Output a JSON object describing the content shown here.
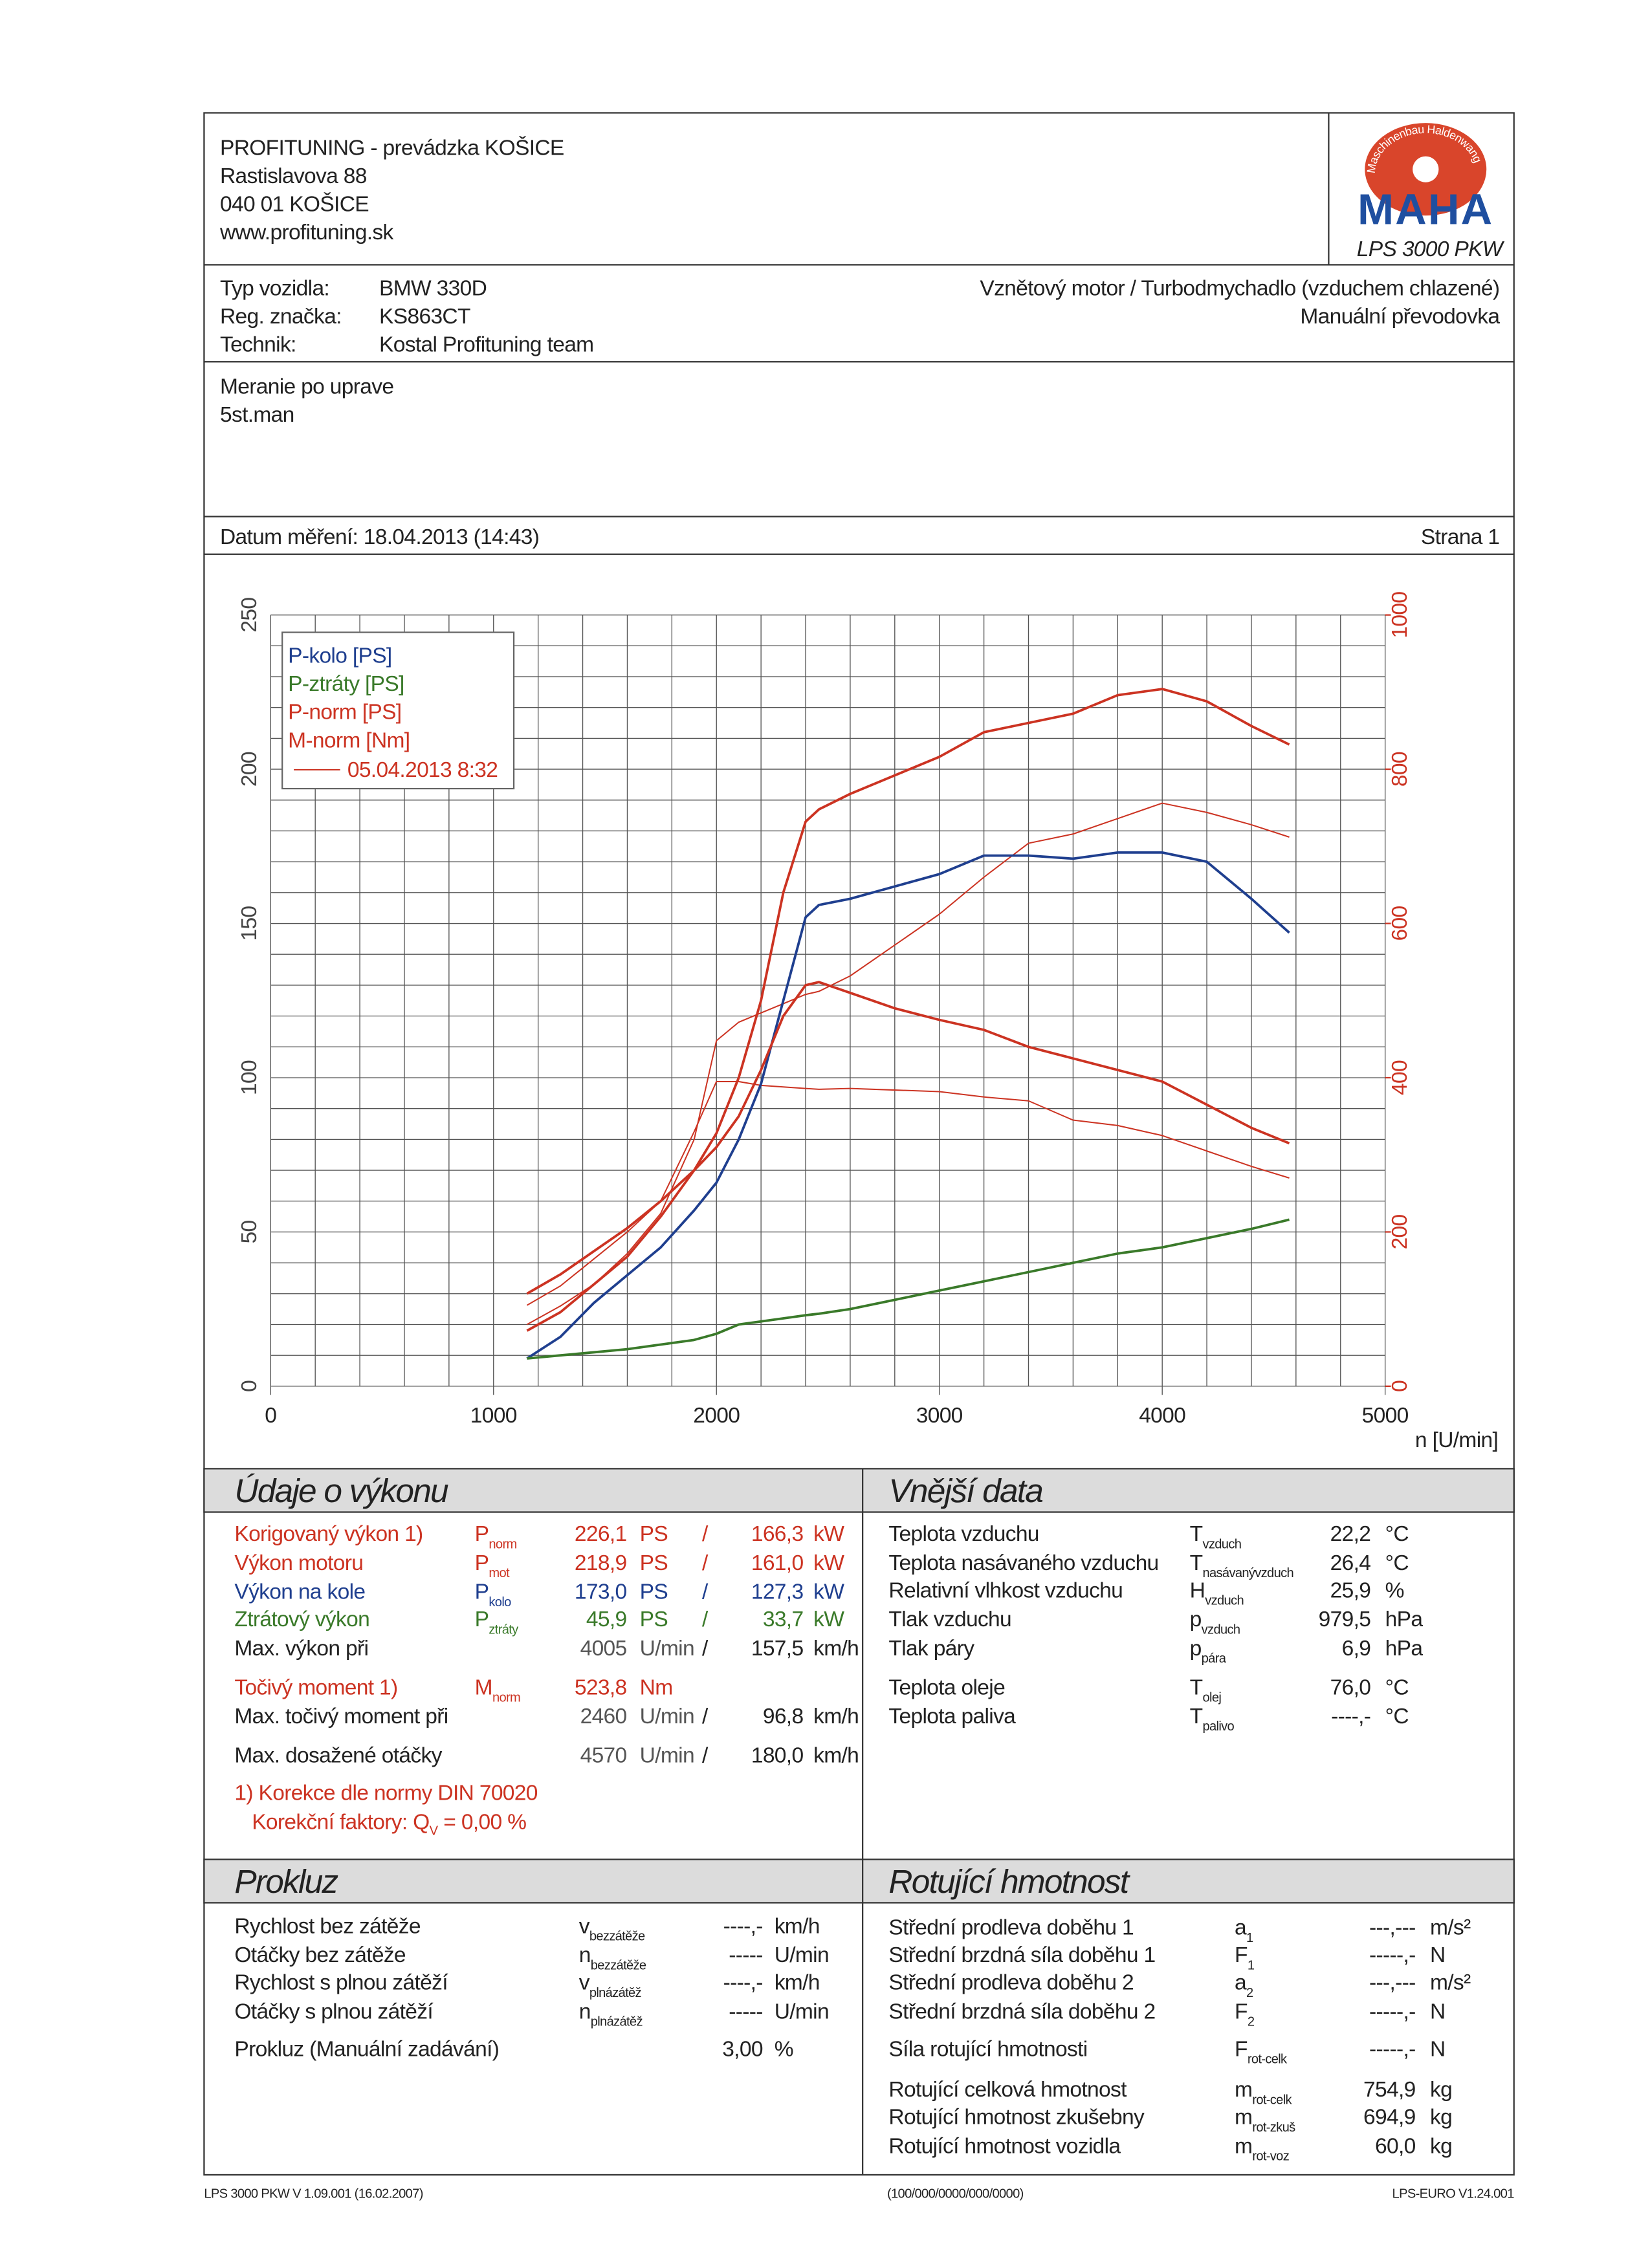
{
  "header": {
    "company_lines": [
      "PROFITUNING - prevádzka KOŠICE",
      "Rastislavova 88",
      "040 01 KOŠICE",
      "www.profituning.sk"
    ],
    "logo_text": "MAHA",
    "logo_ring_text": "Maschinenbau Haldenwang",
    "model": "LPS 3000 PKW"
  },
  "vehicle": {
    "rows": [
      [
        "Typ vozidla:",
        "BMW 330D"
      ],
      [
        "Reg. značka:",
        "KS863CT"
      ],
      [
        "Technik:",
        "Kostal Profituning team"
      ]
    ],
    "right_lines": [
      "Vznětový motor / Turbodmychadlo (vzduchem chlazené)",
      "Manuální převodovka"
    ]
  },
  "notes": [
    "Meranie po uprave",
    "5st.man"
  ],
  "date_row": {
    "date": "Datum měření: 18.04.2013 (14:43)",
    "page": "Strana 1"
  },
  "chart_data": {
    "type": "line",
    "x_label": "n [U/min]",
    "x": [
      1150,
      1300,
      1450,
      1600,
      1750,
      1900,
      2000,
      2100,
      2200,
      2300,
      2400,
      2460,
      2600,
      2800,
      3000,
      3200,
      3400,
      3600,
      3800,
      4000,
      4200,
      4400,
      4570
    ],
    "series": [
      {
        "name": "P-kolo [PS]",
        "color": "#1f3f8f",
        "axis": "y",
        "values": [
          9,
          16,
          27,
          36,
          45,
          57,
          66,
          80,
          98,
          125,
          152,
          156,
          158,
          162,
          166,
          172,
          172,
          171,
          173,
          173,
          170,
          158,
          147
        ]
      },
      {
        "name": "P-ztráty [PS]",
        "color": "#3a7a2a",
        "axis": "y",
        "values": [
          9,
          10,
          11,
          12,
          13.5,
          15,
          17,
          20,
          21,
          22,
          23,
          23.5,
          25,
          28,
          31,
          34,
          37,
          40,
          43,
          45,
          48,
          51,
          54
        ]
      },
      {
        "name": "P-norm [PS]",
        "color": "#cc3322",
        "axis": "y",
        "values": [
          18,
          24,
          33,
          42,
          55,
          70,
          82,
          100,
          125,
          160,
          183,
          187,
          192,
          198,
          204,
          212,
          215,
          218,
          224,
          226,
          222,
          214,
          208
        ]
      },
      {
        "name": "M-norm [Nm]",
        "color": "#cc3322",
        "axis": "y2",
        "values": [
          120,
          145,
          175,
          205,
          240,
          280,
          310,
          350,
          410,
          480,
          520,
          524,
          510,
          490,
          475,
          462,
          440,
          425,
          410,
          395,
          365,
          335,
          315
        ]
      }
    ],
    "comparison": {
      "label": "05.04.2013 8:32",
      "color": "#cc3322",
      "series": [
        {
          "axis": "y",
          "values": [
            20,
            26,
            33,
            43,
            56,
            80,
            112,
            118,
            121,
            124,
            127,
            128,
            133,
            143,
            153,
            165,
            176,
            179,
            184,
            189,
            186,
            182,
            178
          ]
        },
        {
          "axis": "y2",
          "values": [
            105,
            130,
            165,
            200,
            240,
            330,
            395,
            395,
            390,
            388,
            386,
            385,
            386,
            384,
            382,
            375,
            370,
            345,
            338,
            325,
            305,
            285,
            270
          ]
        }
      ]
    },
    "xlim": [
      0,
      5000
    ],
    "xticks": [
      0,
      1000,
      2000,
      3000,
      4000,
      5000
    ],
    "ylim": [
      0,
      250
    ],
    "yticks": [
      0,
      50,
      100,
      150,
      200,
      250
    ],
    "y2lim": [
      0,
      1000
    ],
    "y2ticks": [
      0,
      200,
      400,
      600,
      800,
      1000
    ],
    "y2color": "#cc3322",
    "grid": {
      "x_step": 200,
      "y_step": 10
    },
    "legend": "upper left"
  },
  "performance": {
    "title": "Údaje o výkonu",
    "rows": [
      {
        "label": "Korigovaný výkon 1)",
        "symbol": "P",
        "sub": "norm",
        "v1": "226,1",
        "u1": "PS",
        "sep": "/",
        "v2": "166,3",
        "u2": "kW",
        "color": "#cc3322"
      },
      {
        "label": "Výkon motoru",
        "symbol": "P",
        "sub": "mot",
        "v1": "218,9",
        "u1": "PS",
        "sep": "/",
        "v2": "161,0",
        "u2": "kW",
        "color": "#cc3322"
      },
      {
        "label": "Výkon na kole",
        "symbol": "P",
        "sub": "kolo",
        "v1": "173,0",
        "u1": "PS",
        "sep": "/",
        "v2": "127,3",
        "u2": "kW",
        "color": "#1f3f8f"
      },
      {
        "label": "Ztrátový výkon",
        "symbol": "P",
        "sub": "ztráty",
        "v1": "45,9",
        "u1": "PS",
        "sep": "/",
        "v2": "33,7",
        "u2": "kW",
        "color": "#3a7a2a"
      },
      {
        "label": "Max. výkon při",
        "v1": "4005",
        "u1": "U/min",
        "sep": "/",
        "v2": "157,5",
        "u2": "km/h",
        "color": "#222222"
      },
      {
        "label": "Točivý moment 1)",
        "symbol": "M",
        "sub": "norm",
        "v1": "523,8",
        "u1": "Nm",
        "color": "#cc3322"
      },
      {
        "label": "Max. točivý moment při",
        "v1": "2460",
        "u1": "U/min",
        "sep": "/",
        "v2": "96,8",
        "u2": "km/h",
        "color": "#222222"
      },
      {
        "label": "Max. dosažené otáčky",
        "v1": "4570",
        "u1": "U/min",
        "sep": "/",
        "v2": "180,0",
        "u2": "km/h",
        "color": "#222222"
      }
    ],
    "footnote": "1) Korekce dle normy DIN 70020",
    "factor_label": "Korekční faktory: Q",
    "factor_sub": "V",
    "factor_value": "= 0,00 %"
  },
  "external": {
    "title": "Vnější data",
    "rows": [
      {
        "label": "Teplota vzduchu",
        "symbol": "T",
        "sub": "vzduch",
        "value": "22,2",
        "unit": "°C"
      },
      {
        "label": "Teplota nasávaného vzduchu",
        "symbol": "T",
        "sub": "nasávanývzduch",
        "value": "26,4",
        "unit": "°C"
      },
      {
        "label": "Relativní vlhkost vzduchu",
        "symbol": "H",
        "sub": "vzduch",
        "value": "25,9",
        "unit": "%"
      },
      {
        "label": "Tlak vzduchu",
        "symbol": "p",
        "sub": "vzduch",
        "value": "979,5",
        "unit": "hPa"
      },
      {
        "label": "Tlak páry",
        "symbol": "p",
        "sub": "pára",
        "value": "6,9",
        "unit": "hPa"
      },
      {
        "label": "Teplota oleje",
        "symbol": "T",
        "sub": "olej",
        "value": "76,0",
        "unit": "°C"
      },
      {
        "label": "Teplota paliva",
        "symbol": "T",
        "sub": "palivo",
        "value": "----,-",
        "unit": "°C"
      }
    ]
  },
  "slip": {
    "title": "Prokluz",
    "rows": [
      {
        "label": "Rychlost bez zátěže",
        "symbol": "v",
        "sub": "bezzátěže",
        "value": "----,-",
        "unit": "km/h"
      },
      {
        "label": "Otáčky bez zátěže",
        "symbol": "n",
        "sub": "bezzátěže",
        "value": "-----",
        "unit": "U/min"
      },
      {
        "label": "Rychlost s plnou zátěží",
        "symbol": "v",
        "sub": "plnázátěž",
        "value": "----,-",
        "unit": "km/h"
      },
      {
        "label": "Otáčky s plnou zátěží",
        "symbol": "n",
        "sub": "plnázátěž",
        "value": "-----",
        "unit": "U/min"
      },
      {
        "label": "Prokluz (Manuální zadávání)",
        "value": "3,00",
        "unit": "%"
      }
    ]
  },
  "rotating": {
    "title": "Rotující hmotnost",
    "rows": [
      {
        "label": "Střední prodleva doběhu 1",
        "symbol": "a",
        "sub": "1",
        "value": "---,---",
        "unit": "m/s²"
      },
      {
        "label": "Střední brzdná síla doběhu 1",
        "symbol": "F",
        "sub": "1",
        "value": "-----,-",
        "unit": "N"
      },
      {
        "label": "Střední prodleva doběhu 2",
        "symbol": "a",
        "sub": "2",
        "value": "---,---",
        "unit": "m/s²"
      },
      {
        "label": "Střední brzdná síla doběhu 2",
        "symbol": "F",
        "sub": "2",
        "value": "-----,-",
        "unit": "N"
      },
      {
        "label": "Síla rotující hmotnosti",
        "symbol": "F",
        "sub": "rot-celk",
        "value": "-----,-",
        "unit": "N"
      },
      {
        "label": "Rotující celková hmotnost",
        "symbol": "m",
        "sub": "rot-celk",
        "value": "754,9",
        "unit": "kg"
      },
      {
        "label": "Rotující hmotnost zkušebny",
        "symbol": "m",
        "sub": "rot-zkuš",
        "value": "694,9",
        "unit": "kg"
      },
      {
        "label": "Rotující hmotnost vozidla",
        "symbol": "m",
        "sub": "rot-voz",
        "value": "60,0",
        "unit": "kg"
      }
    ]
  },
  "footer": [
    "LPS 3000 PKW V 1.09.001 (16.02.2007)",
    "(100/000/0000/000/0000)",
    "LPS-EURO V1.24.001"
  ]
}
